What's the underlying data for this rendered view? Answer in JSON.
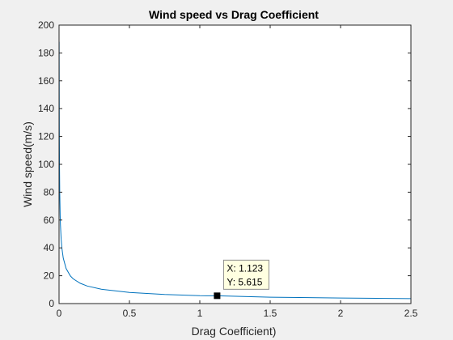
{
  "chart_data": {
    "type": "line",
    "title": "Wind speed vs Drag Coefficient",
    "xlabel": "Drag Coefficient)",
    "ylabel": "Wind speed(m/s)",
    "xlim": [
      0,
      2.5
    ],
    "ylim": [
      0,
      200
    ],
    "xticks": [
      0,
      0.5,
      1,
      1.5,
      2,
      2.5
    ],
    "xtick_labels": [
      "0",
      "0.5",
      "1",
      "1.5",
      "2",
      "2.5"
    ],
    "yticks": [
      0,
      20,
      40,
      60,
      80,
      100,
      120,
      140,
      160,
      180,
      200
    ],
    "ytick_labels": [
      "0",
      "20",
      "40",
      "60",
      "80",
      "100",
      "120",
      "140",
      "160",
      "180",
      "200"
    ],
    "grid": false,
    "series": [
      {
        "color": "#0072bd",
        "x": [
          0.0008,
          0.001,
          0.002,
          0.003,
          0.005,
          0.008,
          0.01,
          0.015,
          0.02,
          0.03,
          0.05,
          0.08,
          0.1,
          0.15,
          0.2,
          0.3,
          0.5,
          0.75,
          1.0,
          1.123,
          1.5,
          2.0,
          2.5
        ],
        "y": [
          188,
          178.4,
          126.1,
          103.0,
          79.8,
          63.1,
          56.4,
          46.1,
          39.9,
          32.6,
          25.2,
          19.9,
          17.8,
          14.6,
          12.6,
          10.3,
          7.98,
          6.51,
          5.64,
          5.615,
          4.61,
          3.99,
          3.57
        ]
      }
    ],
    "datatip": {
      "x": 1.123,
      "y": 5.615,
      "x_text": "X: 1.123",
      "y_text": "Y: 5.615"
    }
  }
}
